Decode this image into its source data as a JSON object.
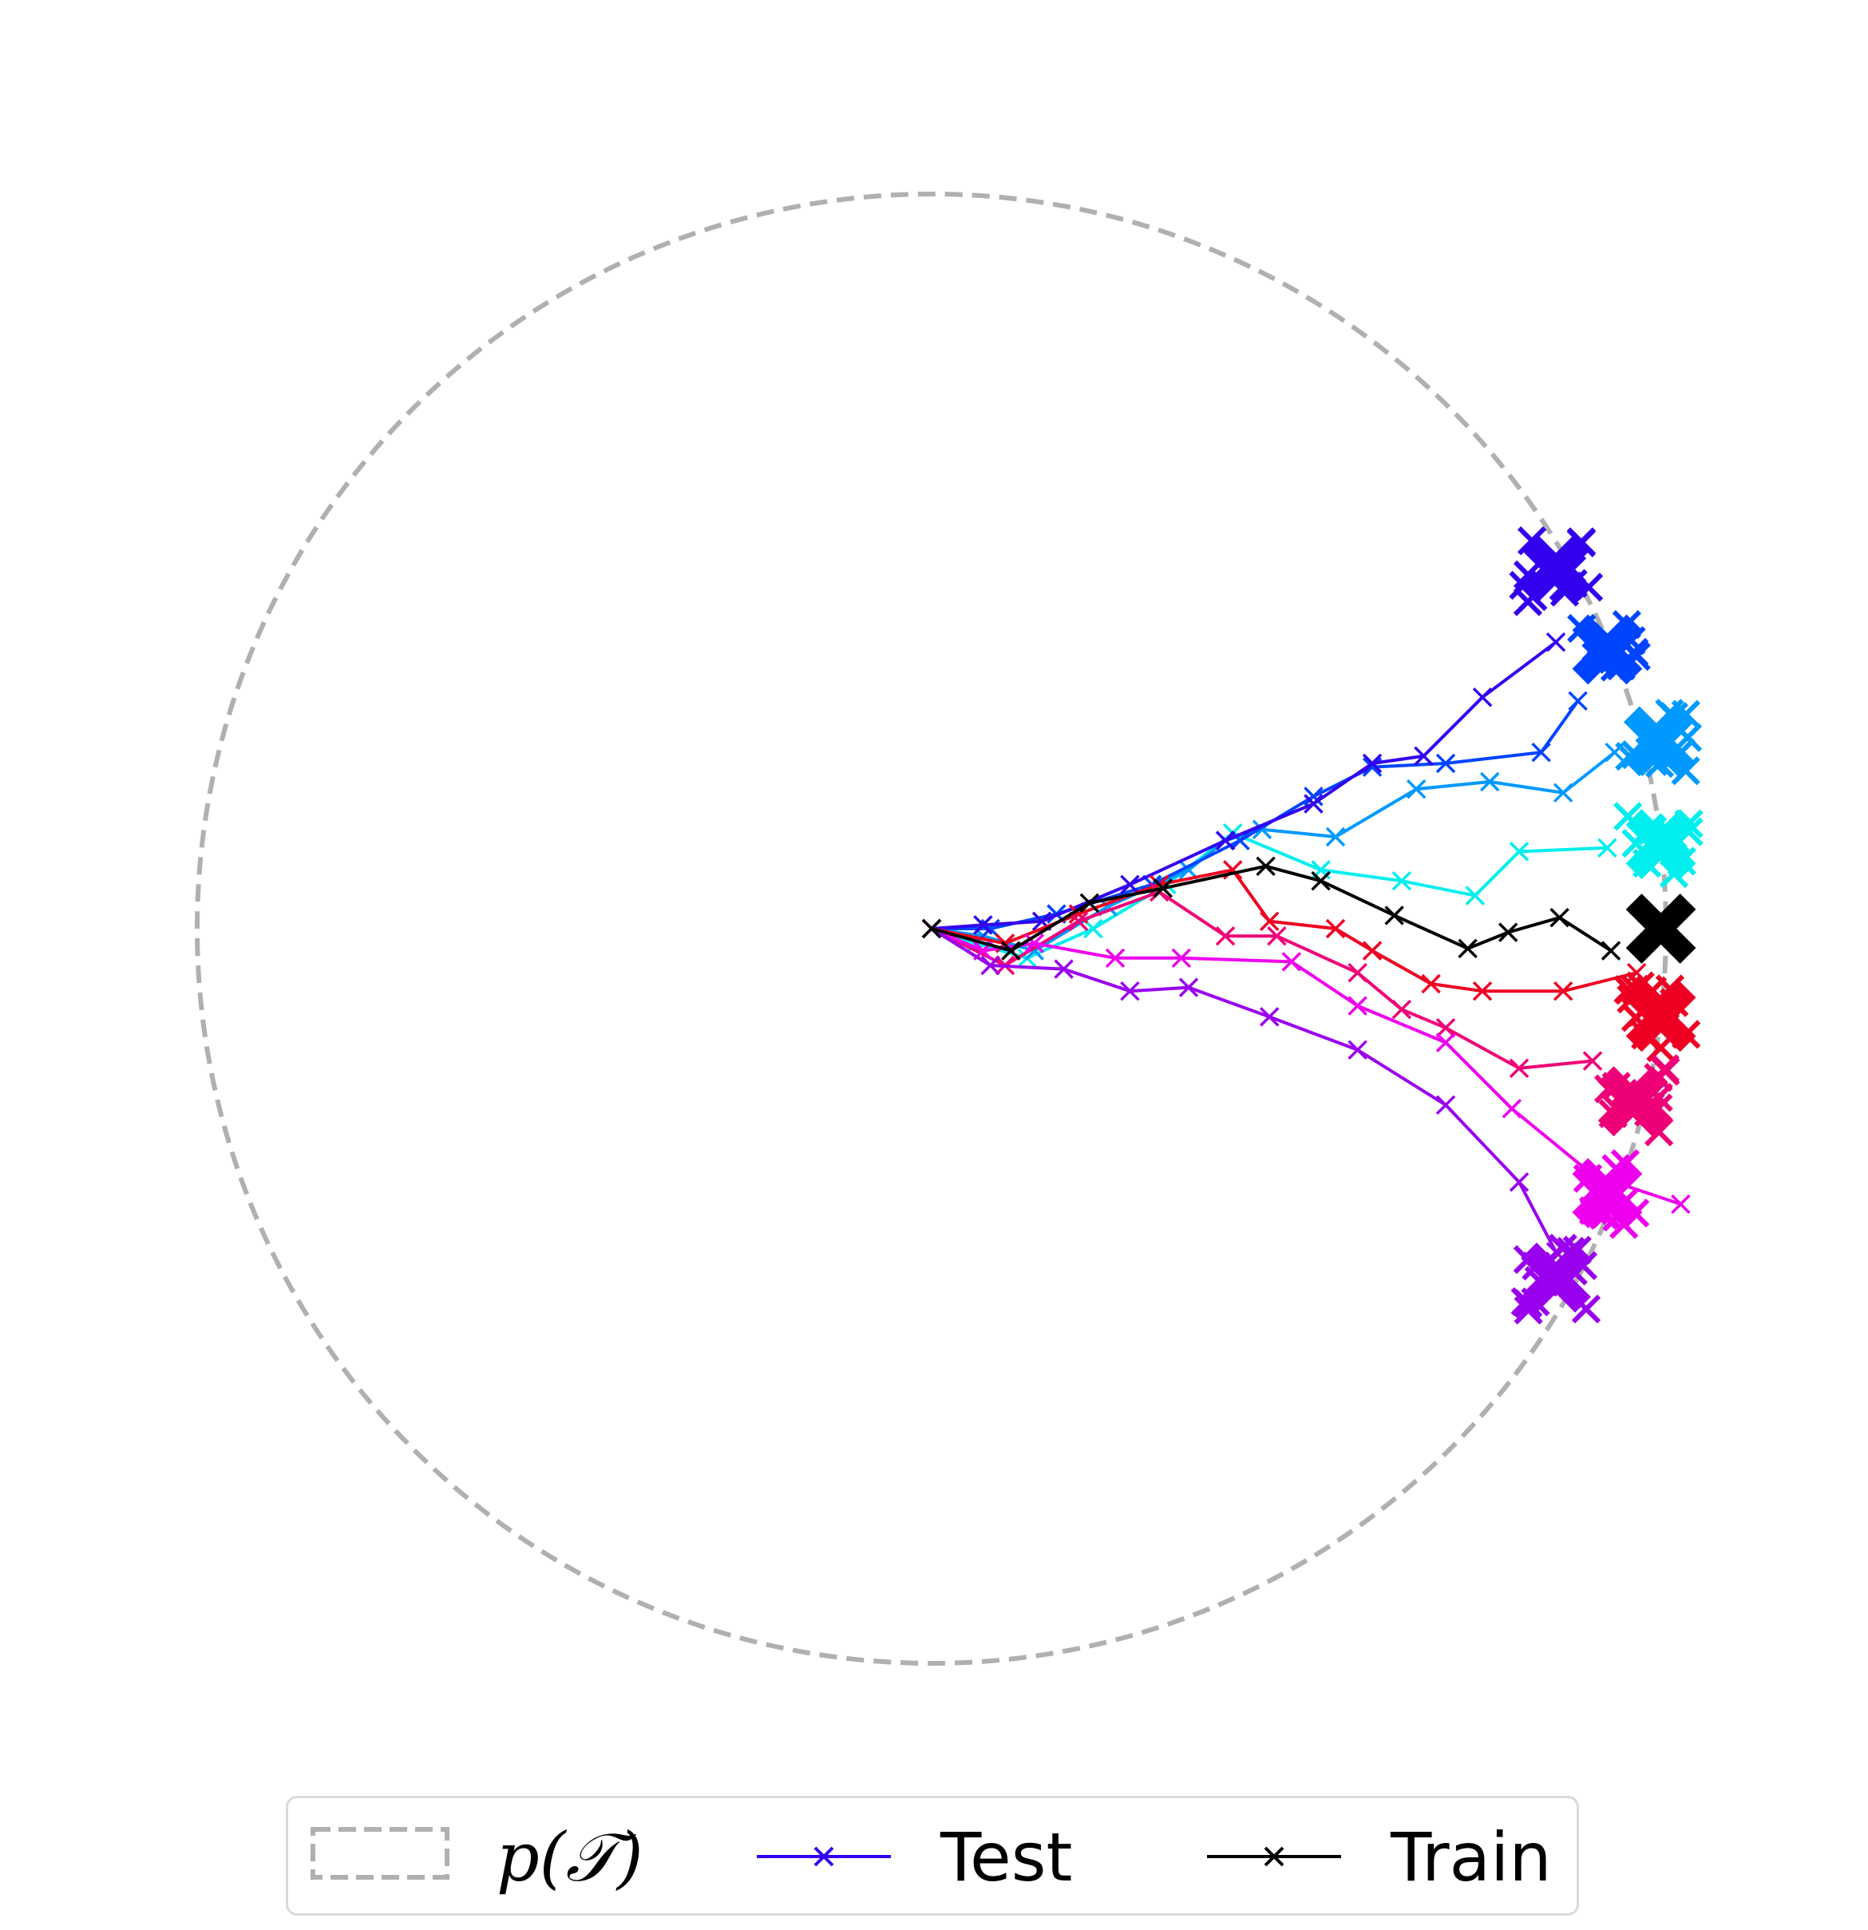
{
  "chart_data": {
    "type": "scatter",
    "title": "",
    "xlabel": "",
    "ylabel": "",
    "axes_visible": false,
    "grid": false,
    "xlim": [
      -1.0,
      1.0
    ],
    "ylim": [
      -1.0,
      1.0
    ],
    "aspect": "equal",
    "task_distribution": {
      "shape": "circle",
      "center": [
        0,
        0
      ],
      "radius": 1.0,
      "color": "#b0b0b0",
      "linestyle": "dashed"
    },
    "start": [
      0,
      0
    ],
    "train": {
      "name": "Train",
      "color": "#000000",
      "goal": [
        0.993,
        0.0
      ],
      "path": [
        [
          0,
          0
        ],
        [
          0.108,
          -0.03
        ],
        [
          0.215,
          0.035
        ],
        [
          0.315,
          0.055
        ],
        [
          0.455,
          0.085
        ],
        [
          0.53,
          0.065
        ],
        [
          0.63,
          0.018
        ],
        [
          0.73,
          -0.027
        ],
        [
          0.785,
          -0.005
        ],
        [
          0.855,
          0.015
        ],
        [
          0.925,
          -0.03
        ]
      ]
    },
    "test": [
      {
        "color": "#00eeee",
        "goal": [
          0.993,
          0.115
        ],
        "path": [
          [
            0,
            0
          ],
          [
            0.06,
            -0.02
          ],
          [
            0.13,
            -0.04
          ],
          [
            0.22,
            0.0
          ],
          [
            0.32,
            0.06
          ],
          [
            0.41,
            0.13
          ],
          [
            0.53,
            0.08
          ],
          [
            0.64,
            0.065
          ],
          [
            0.74,
            0.045
          ],
          [
            0.8,
            0.105
          ],
          [
            0.92,
            0.11
          ]
        ]
      },
      {
        "color": "#0099ff",
        "goal": [
          0.99,
          0.255
        ],
        "path": [
          [
            0,
            0
          ],
          [
            0.07,
            -0.01
          ],
          [
            0.14,
            -0.03
          ],
          [
            0.24,
            0.03
          ],
          [
            0.35,
            0.08
          ],
          [
            0.4,
            0.12
          ],
          [
            0.45,
            0.135
          ],
          [
            0.55,
            0.125
          ],
          [
            0.66,
            0.19
          ],
          [
            0.76,
            0.2
          ],
          [
            0.86,
            0.185
          ],
          [
            0.93,
            0.24
          ]
        ]
      },
      {
        "color": "#0044ff",
        "goal": [
          0.92,
          0.38
        ],
        "path": [
          [
            0,
            0
          ],
          [
            0.08,
            0.0
          ],
          [
            0.17,
            0.02
          ],
          [
            0.3,
            0.06
          ],
          [
            0.42,
            0.12
          ],
          [
            0.52,
            0.18
          ],
          [
            0.6,
            0.22
          ],
          [
            0.7,
            0.225
          ],
          [
            0.83,
            0.24
          ],
          [
            0.88,
            0.31
          ]
        ]
      },
      {
        "color": "#3300ee",
        "goal": [
          0.85,
          0.49
        ],
        "path": [
          [
            0,
            0
          ],
          [
            0.07,
            0.005
          ],
          [
            0.15,
            0.01
          ],
          [
            0.27,
            0.06
          ],
          [
            0.4,
            0.12
          ],
          [
            0.52,
            0.17
          ],
          [
            0.6,
            0.225
          ],
          [
            0.67,
            0.235
          ],
          [
            0.75,
            0.315
          ],
          [
            0.85,
            0.39
          ]
        ]
      },
      {
        "color": "#ee0022",
        "goal": [
          0.993,
          -0.12
        ],
        "path": [
          [
            0,
            0
          ],
          [
            0.1,
            -0.02
          ],
          [
            0.2,
            0.02
          ],
          [
            0.31,
            0.06
          ],
          [
            0.41,
            0.08
          ],
          [
            0.46,
            0.01
          ],
          [
            0.55,
            0.0
          ],
          [
            0.6,
            -0.03
          ],
          [
            0.68,
            -0.075
          ],
          [
            0.75,
            -0.085
          ],
          [
            0.86,
            -0.085
          ],
          [
            0.96,
            -0.06
          ]
        ]
      },
      {
        "color": "#ee0077",
        "goal": [
          0.955,
          -0.235
        ],
        "path": [
          [
            0,
            0
          ],
          [
            0.1,
            -0.05
          ],
          [
            0.2,
            0.01
          ],
          [
            0.31,
            0.05
          ],
          [
            0.4,
            -0.01
          ],
          [
            0.47,
            -0.01
          ],
          [
            0.58,
            -0.06
          ],
          [
            0.64,
            -0.11
          ],
          [
            0.7,
            -0.135
          ],
          [
            0.8,
            -0.19
          ],
          [
            0.9,
            -0.18
          ]
        ]
      },
      {
        "color": "#ee00ee",
        "goal": [
          0.92,
          -0.36
        ],
        "path": [
          [
            0,
            0
          ],
          [
            0.07,
            -0.03
          ],
          [
            0.14,
            -0.02
          ],
          [
            0.25,
            -0.04
          ],
          [
            0.34,
            -0.04
          ],
          [
            0.49,
            -0.045
          ],
          [
            0.58,
            -0.105
          ],
          [
            0.7,
            -0.155
          ],
          [
            0.79,
            -0.245
          ],
          [
            0.9,
            -0.335
          ],
          [
            1.02,
            -0.375
          ]
        ]
      },
      {
        "color": "#9900ee",
        "goal": [
          0.85,
          -0.475
        ],
        "path": [
          [
            0,
            0
          ],
          [
            0.08,
            -0.05
          ],
          [
            0.18,
            -0.055
          ],
          [
            0.27,
            -0.085
          ],
          [
            0.35,
            -0.08
          ],
          [
            0.46,
            -0.12
          ],
          [
            0.58,
            -0.165
          ],
          [
            0.7,
            -0.24
          ],
          [
            0.8,
            -0.345
          ],
          [
            0.85,
            -0.44
          ]
        ]
      }
    ],
    "legend": {
      "placement": "below",
      "entries": [
        "p(𝒯)",
        "Test",
        "Train"
      ]
    }
  },
  "legend": {
    "task_dist_label": "p(𝒯)",
    "test_label": "Test",
    "train_label": "Train"
  }
}
